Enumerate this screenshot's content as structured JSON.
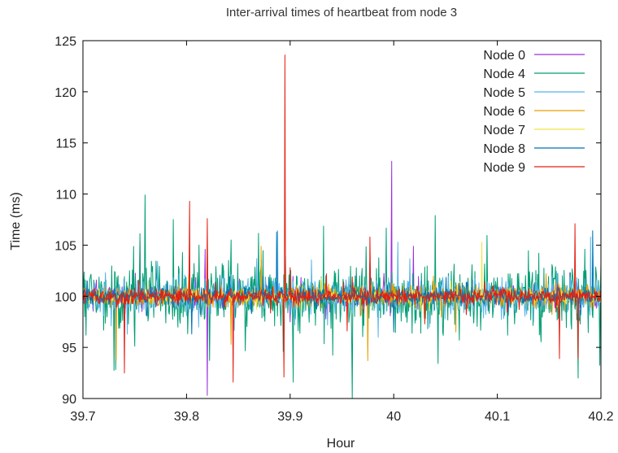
{
  "chart_data": {
    "type": "line",
    "title": "Inter-arrival times of heartbeat from node 3",
    "xlabel": "Hour",
    "ylabel": "Time (ms)",
    "xlim": [
      39.7,
      40.2
    ],
    "ylim": [
      90,
      125
    ],
    "xticks": [
      39.7,
      39.8,
      39.9,
      40.0,
      40.1,
      40.2
    ],
    "xtick_labels": [
      "39.7",
      "39.8",
      "39.9",
      "40",
      "40.1",
      "40.2"
    ],
    "yticks": [
      90,
      95,
      100,
      105,
      110,
      115,
      120,
      125
    ],
    "ytick_labels": [
      "90",
      "95",
      "100",
      "105",
      "110",
      "115",
      "120",
      "125"
    ],
    "grid": false,
    "legend_position": "top-right",
    "series": [
      {
        "name": "Node 0",
        "color": "#9b30d9",
        "noise": 0.6,
        "spikes": [
          [
            39.713,
            101.6
          ],
          [
            39.755,
            105.4
          ],
          [
            39.757,
            98.5
          ],
          [
            39.82,
            90.3
          ],
          [
            39.818,
            104.6
          ],
          [
            39.9,
            97.5
          ],
          [
            39.998,
            113.2
          ],
          [
            40.001,
            98.8
          ],
          [
            40.019,
            104.9
          ],
          [
            40.05,
            99.0
          ],
          [
            40.17,
            102.3
          ],
          [
            40.196,
            101.0
          ]
        ]
      },
      {
        "name": "Node 4",
        "color": "#009e73",
        "noise": 1.9,
        "spikes": [
          [
            39.703,
            96.2
          ],
          [
            39.76,
            109.9
          ],
          [
            39.812,
            105.0
          ],
          [
            39.843,
            105.5
          ],
          [
            39.903,
            91.6
          ],
          [
            39.96,
            90.0
          ],
          [
            40.04,
            107.9
          ],
          [
            40.11,
            96.2
          ],
          [
            40.178,
            92.0
          ],
          [
            40.2,
            103.2
          ]
        ]
      },
      {
        "name": "Node 5",
        "color": "#56b4e9",
        "noise": 1.0,
        "spikes": [
          [
            39.772,
            103.4
          ],
          [
            39.888,
            106.4
          ],
          [
            39.985,
            96.0
          ],
          [
            40.004,
            105.3
          ],
          [
            40.135,
            97.5
          ],
          [
            40.19,
            105.8
          ]
        ]
      },
      {
        "name": "Node 6",
        "color": "#e69f00",
        "noise": 0.6,
        "spikes": [
          [
            39.732,
            93.7
          ],
          [
            39.843,
            95.3
          ],
          [
            39.872,
            104.9
          ],
          [
            39.975,
            93.7
          ],
          [
            40.06,
            96.5
          ],
          [
            40.147,
            102.2
          ]
        ]
      },
      {
        "name": "Node 7",
        "color": "#f0e442",
        "noise": 0.4,
        "spikes": [
          [
            39.763,
            101.5
          ],
          [
            39.93,
            101.8
          ],
          [
            40.085,
            105.3
          ],
          [
            40.16,
            101.2
          ]
        ]
      },
      {
        "name": "Node 8",
        "color": "#0072b2",
        "noise": 0.5,
        "spikes": [
          [
            39.805,
            96.3
          ],
          [
            39.887,
            106.3
          ],
          [
            40.0,
            96.5
          ],
          [
            40.192,
            106.4
          ]
        ]
      },
      {
        "name": "Node 9",
        "color": "#e51e10",
        "noise": 0.45,
        "spikes": [
          [
            39.74,
            92.5
          ],
          [
            39.803,
            109.3
          ],
          [
            39.82,
            107.6
          ],
          [
            39.845,
            91.6
          ],
          [
            39.895,
            123.6
          ],
          [
            39.894,
            92.1
          ],
          [
            39.9,
            102.8
          ],
          [
            39.935,
            102.2
          ],
          [
            39.955,
            96.6
          ],
          [
            39.96,
            101.9
          ],
          [
            39.977,
            105.8
          ],
          [
            40.03,
            97.3
          ],
          [
            40.07,
            98.2
          ],
          [
            40.16,
            93.9
          ],
          [
            40.175,
            107.1
          ],
          [
            40.178,
            93.9
          ]
        ]
      }
    ]
  }
}
